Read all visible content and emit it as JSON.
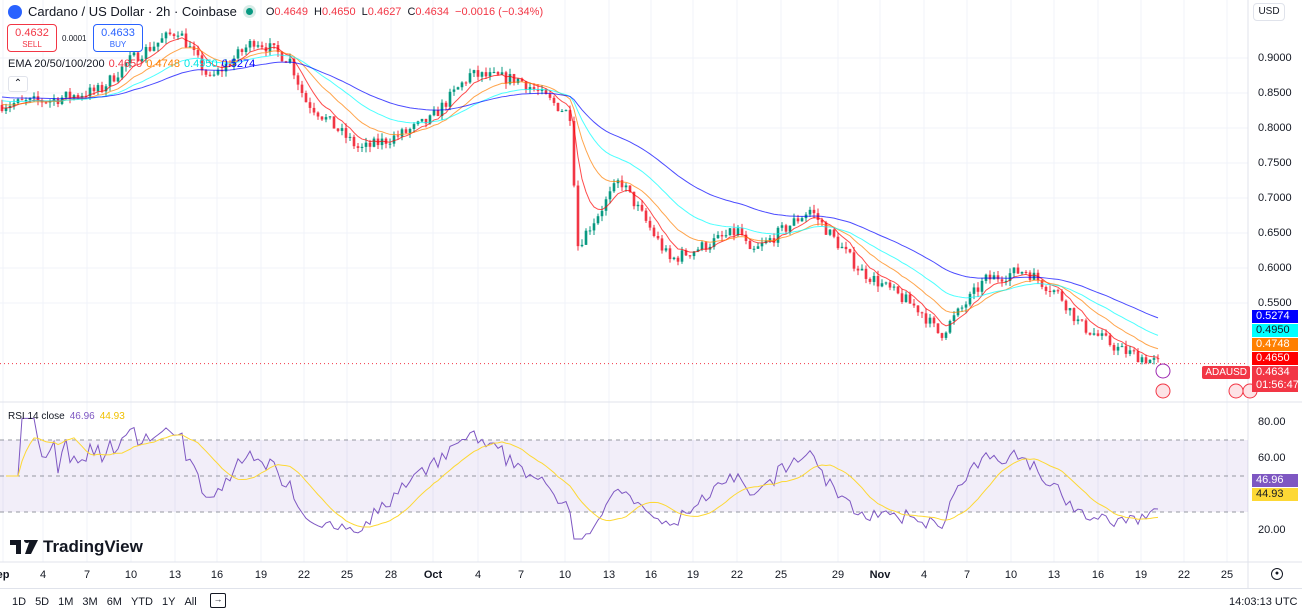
{
  "header": {
    "title": "Cardano / US Dollar · 2h · Coinbase",
    "open_label": "O",
    "open": "0.4649",
    "high_label": "H",
    "high": "0.4650",
    "low_label": "L",
    "low": "0.4627",
    "close_label": "C",
    "close": "0.4634",
    "change": "−0.0016 (−0.34%)"
  },
  "trade": {
    "sell_price": "0.4632",
    "sell_label": "SELL",
    "spread": "0.0001",
    "buy_price": "0.4633",
    "buy_label": "BUY"
  },
  "ema": {
    "label": "EMA 20/50/100/200",
    "v20": "0.4650",
    "v50": "0.4748",
    "v100": "0.4950",
    "v200": "0.5274"
  },
  "colors": {
    "up": "#089981",
    "down": "#f23645",
    "ema20": "#ff0000",
    "ema50": "#ff7f00",
    "ema100": "#00ffff",
    "ema200": "#0000ff",
    "rsi": "#7e57c2",
    "rsi_ma": "#fdd835"
  },
  "currency_button": "USD",
  "price_axis": [
    "0.9000",
    "0.8500",
    "0.8000",
    "0.7500",
    "0.7000",
    "0.6500",
    "0.6000",
    "0.5500"
  ],
  "price_tags": {
    "ema200": "0.5274",
    "ema100": "0.4950",
    "ema50": "0.4748",
    "ema20": "0.4650",
    "last": "0.4634",
    "countdown": "01:56:47",
    "symbol": "ADAUSD"
  },
  "rsi": {
    "label": "RSI 14 close",
    "value": "46.96",
    "ma": "44.93",
    "axis": [
      "80.00",
      "60.00",
      "20.00"
    ]
  },
  "brand": "TradingView",
  "time_axis": [
    "ep",
    "4",
    "7",
    "10",
    "13",
    "16",
    "19",
    "22",
    "25",
    "28",
    "Oct",
    "4",
    "7",
    "10",
    "13",
    "16",
    "19",
    "22",
    "25",
    "29",
    "Nov",
    "4",
    "7",
    "10",
    "13",
    "16",
    "19",
    "22",
    "25"
  ],
  "ranges": [
    "1D",
    "5D",
    "1M",
    "3M",
    "6M",
    "YTD",
    "1Y",
    "All"
  ],
  "clock": "14:03:13 UTC"
}
